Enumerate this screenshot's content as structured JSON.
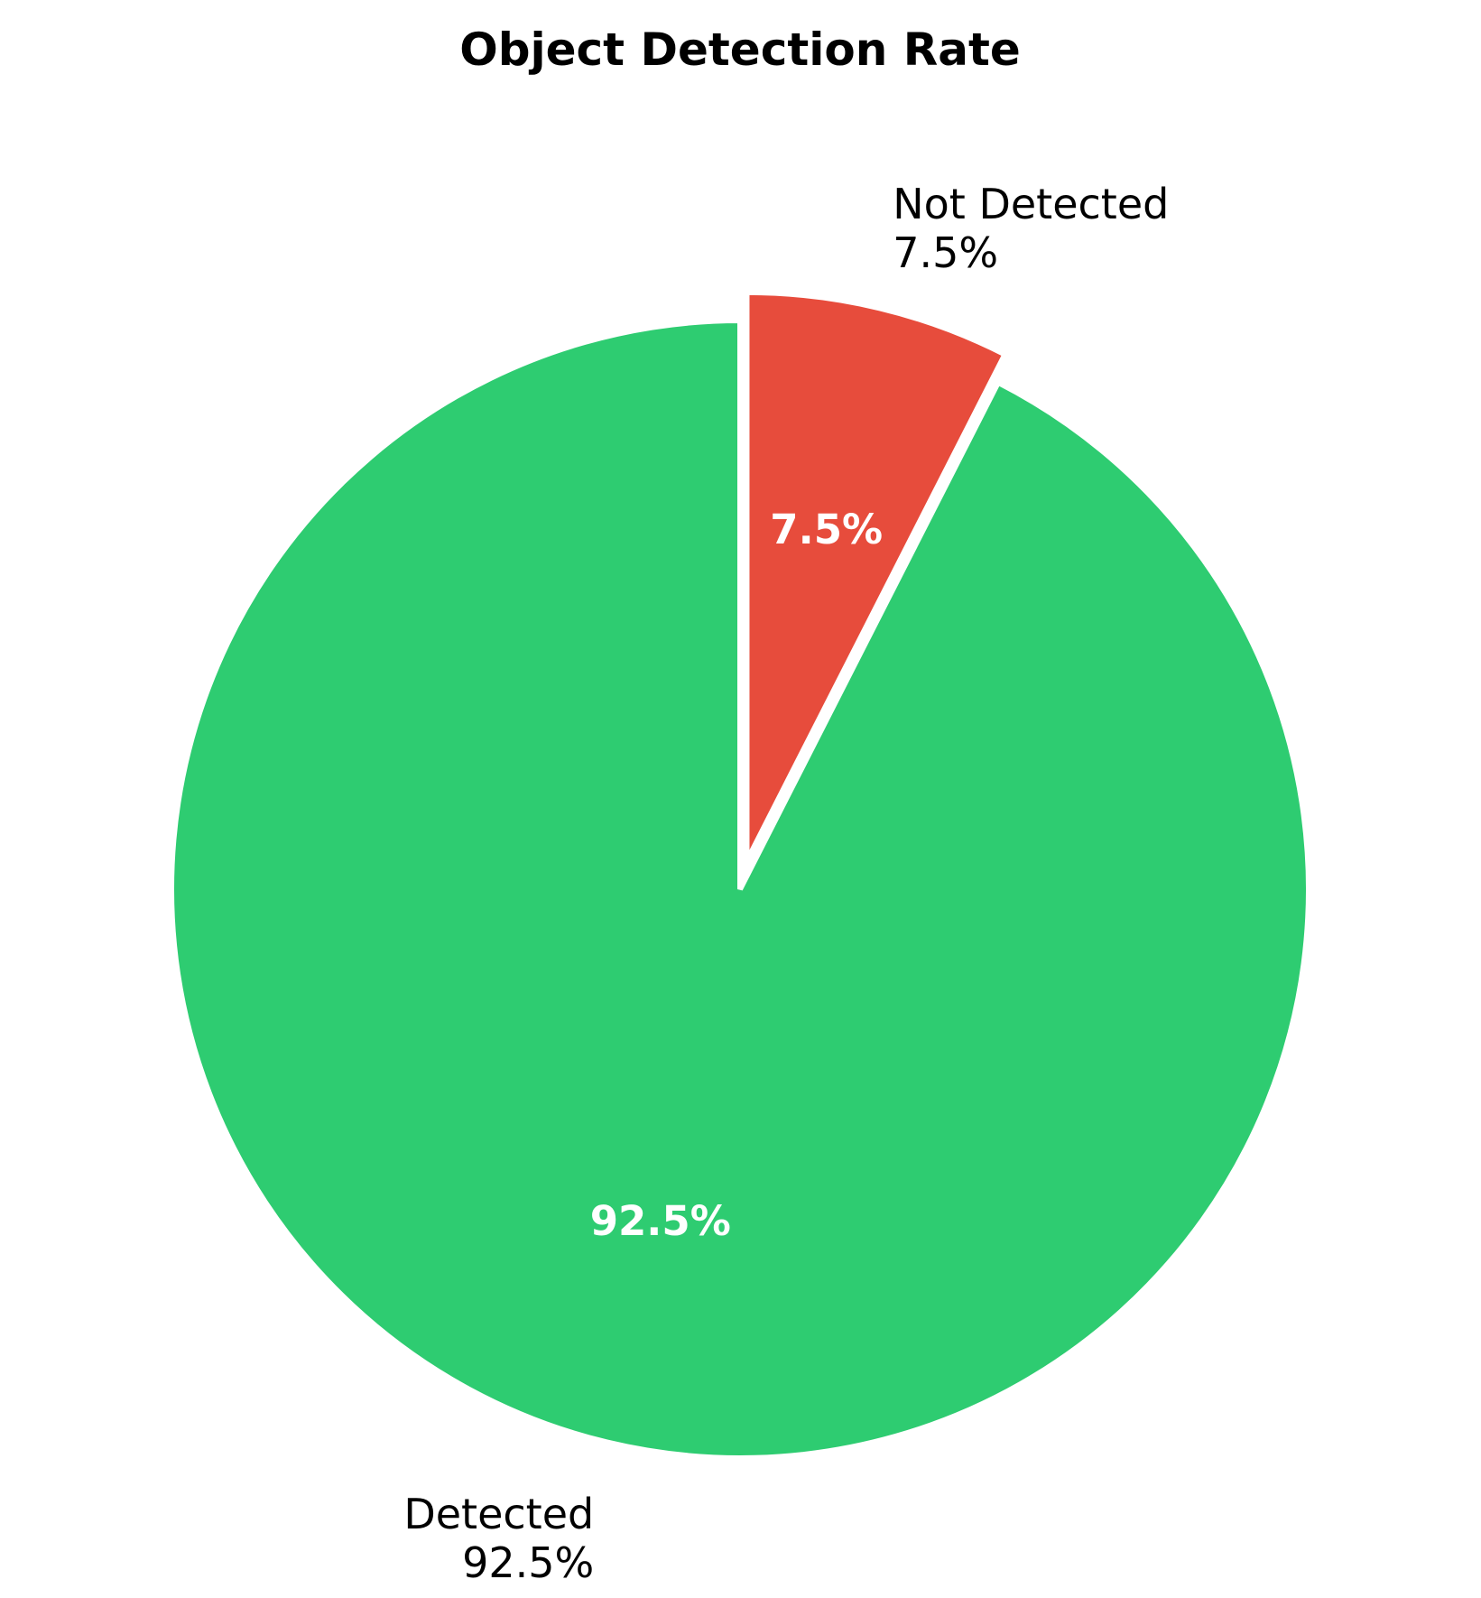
{
  "chart_data": {
    "type": "pie",
    "title": "Object Detection Rate",
    "slices": [
      {
        "label": "Not Detected",
        "value": 7.5,
        "pct_label": "7.5%",
        "color": "#e74c3c",
        "exploded": true
      },
      {
        "label": "Detected",
        "value": 92.5,
        "pct_label": "92.5%",
        "color": "#2ecc71",
        "exploded": false
      }
    ],
    "start_angle": "12 o'clock",
    "direction": "clockwise",
    "slice_edge_color": "#ffffff"
  }
}
